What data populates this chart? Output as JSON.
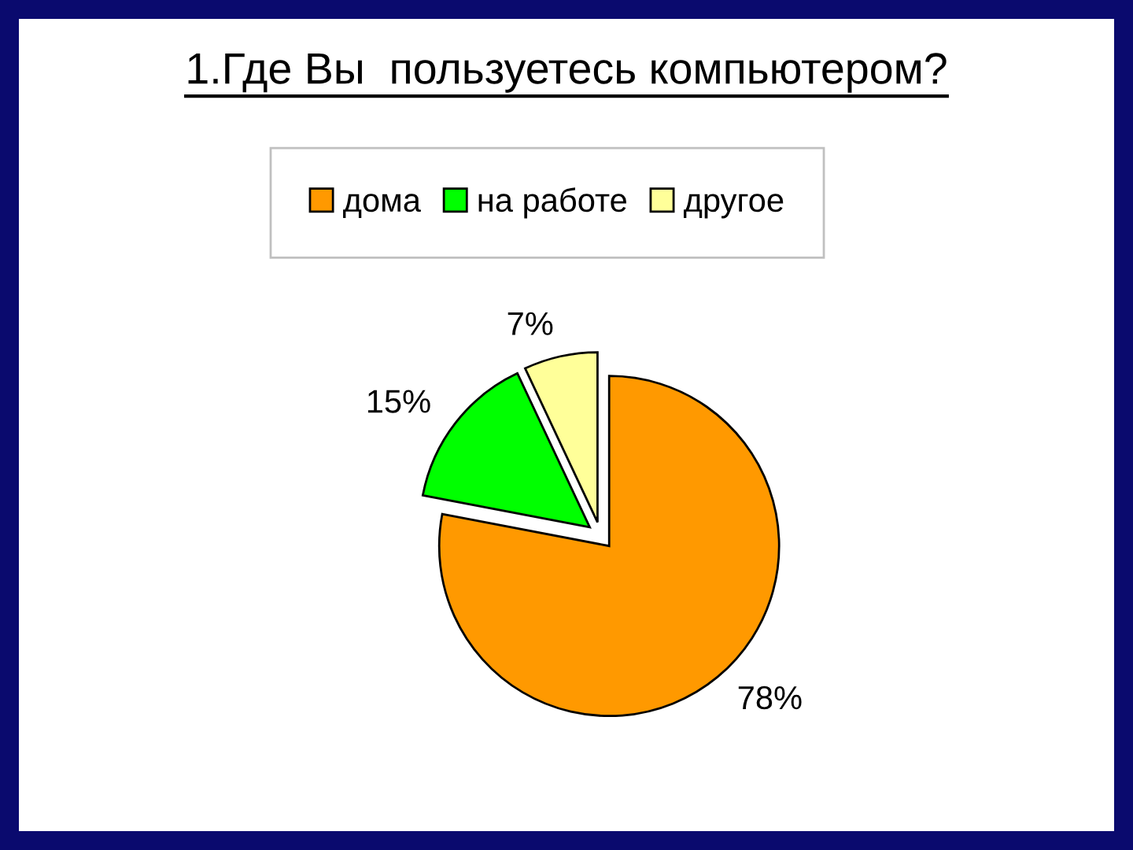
{
  "chart_data": {
    "type": "pie",
    "title": "1.Где Вы  пользуетесь компьютером?",
    "categories": [
      "дома",
      "на работе",
      "другое"
    ],
    "values": [
      78,
      15,
      7
    ],
    "colors": [
      "#ff9900",
      "#00ff00",
      "#ffff99"
    ],
    "value_labels": [
      "78%",
      "15%",
      "7%"
    ],
    "legend": "top"
  }
}
